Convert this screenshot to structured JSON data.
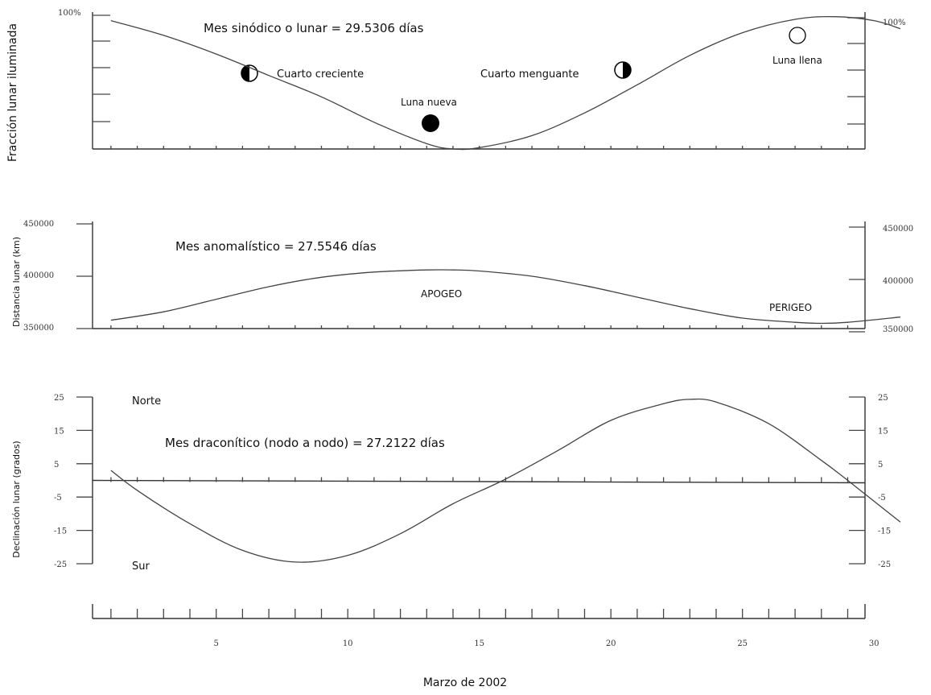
{
  "chart_data": [
    {
      "type": "line",
      "title": "Mes sinódico o lunar = 29.5306 días",
      "ylabel": "Fracción lunar iluminada",
      "xlabel": "Marzo de 2002",
      "xlim": [
        1,
        31
      ],
      "ylim": [
        0,
        100
      ],
      "ytick_label_top": "100%",
      "series": [
        {
          "x": [
            1,
            3,
            5,
            7,
            9,
            11,
            13,
            14,
            15,
            17,
            19,
            21,
            23,
            25,
            27,
            28.5,
            30,
            31
          ],
          "y": [
            96,
            85,
            71,
            55,
            39,
            20,
            4,
            0,
            1,
            10,
            27,
            48,
            70,
            87,
            97,
            99,
            96,
            90
          ]
        }
      ],
      "annotations": [
        "Cuarto creciente",
        "Luna nueva",
        "Cuarto menguante",
        "Luna llena"
      ]
    },
    {
      "type": "line",
      "title": "Mes anomalístico = 27.5546 días",
      "ylabel": "Distancia lunar (km)",
      "xlim": [
        1,
        31
      ],
      "ylim": [
        350000,
        450000
      ],
      "yticks": [
        "450000",
        "400000",
        "350000"
      ],
      "series": [
        {
          "x": [
            1,
            3,
            5,
            7,
            9,
            11,
            13,
            14,
            15,
            17,
            19,
            21,
            23,
            25,
            27,
            28,
            29,
            31
          ],
          "y": [
            358000,
            366000,
            378000,
            390000,
            399000,
            404000,
            406000,
            406000,
            405000,
            400000,
            391000,
            380000,
            369000,
            360000,
            356000,
            355000,
            356000,
            361000
          ]
        }
      ],
      "annotations": [
        "APOGEO",
        "PERIGEO"
      ]
    },
    {
      "type": "line",
      "title": "Mes draconítico (nodo a nodo) = 27.2122 días",
      "ylabel": "Declinación lunar (grados)",
      "xlim": [
        1,
        31
      ],
      "ylim": [
        -25,
        25
      ],
      "yticks": [
        "25",
        "15",
        "5",
        "-5",
        "-15",
        "-25"
      ],
      "x_ticklabels": [
        "5",
        "10",
        "15",
        "20",
        "25",
        "30"
      ],
      "series": [
        {
          "x": [
            1,
            2,
            4,
            6,
            8,
            10,
            12,
            14,
            15.9,
            18,
            20,
            22,
            23,
            24,
            26,
            28,
            29,
            31
          ],
          "y": [
            3,
            -3,
            -13,
            -21,
            -24.5,
            -22.5,
            -16,
            -7,
            0,
            9,
            18,
            23,
            24.3,
            23.5,
            17,
            6,
            0,
            -12.5
          ]
        }
      ],
      "annotations": [
        "Norte",
        "Sur"
      ]
    }
  ]
}
